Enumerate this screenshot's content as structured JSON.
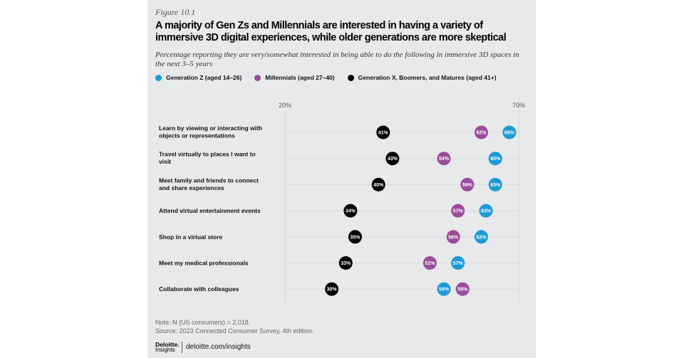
{
  "figure_label": "Figure 10.1",
  "footer": {
    "note": "Note: N (US consumers) = 2,018.",
    "source": "Source: 2023 Connected Consumer Survey, 4th edition.",
    "logo_line1": "Deloitte.",
    "logo_line2": "Insights",
    "url": "deloitte.com/insights"
  },
  "chart_data": {
    "type": "scatter",
    "subtype": "dot-plot",
    "title": "A majority of Gen Zs and Millennials are interested in having a variety of immersive 3D digital experiences, while older generations are more skeptical",
    "subtitle": "Percentage reporting they are very/somewhat interested in being able to do the following in immersive 3D spaces in the next 3–5 years",
    "xlim": [
      20,
      70
    ],
    "x_ticks": [
      "20%",
      "70%"
    ],
    "legend_position": "top-left",
    "grid": true,
    "categories": [
      "Learn by viewing or interacting with objects or representations",
      "Travel virtually to places I want to visit",
      "Meet family and friends to connect and share experiences",
      "Attend virtual entertainment events",
      "Shop in a virtual store",
      "Meet my medical professionals",
      "Collaborate with colleagues"
    ],
    "series": [
      {
        "name": "Generation Z (aged 14–26)",
        "color": "#1b9ad6",
        "values": [
          68,
          65,
          65,
          63,
          62,
          57,
          54
        ]
      },
      {
        "name": "Millennials (aged 27–40)",
        "color": "#9b4c9c",
        "values": [
          62,
          54,
          59,
          57,
          56,
          51,
          58
        ]
      },
      {
        "name": "Generation X, Boomers, and Matures (aged 41+)",
        "color": "#000000",
        "values": [
          41,
          43,
          40,
          34,
          35,
          33,
          30
        ]
      }
    ]
  }
}
